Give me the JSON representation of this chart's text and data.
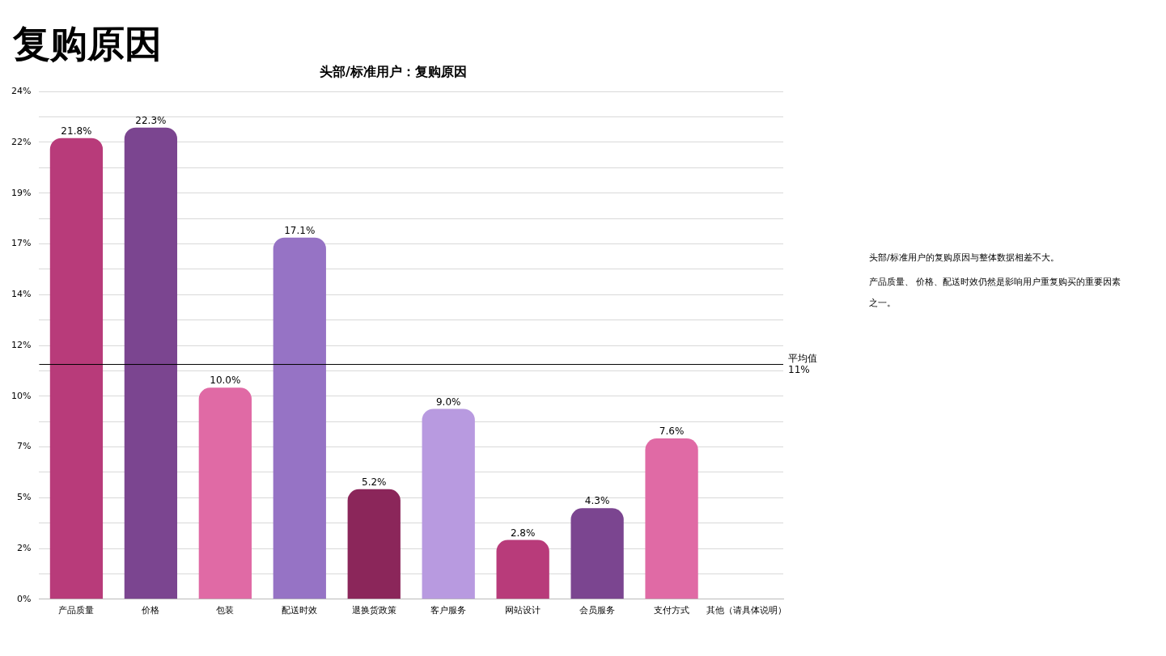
{
  "chart_data": {
    "type": "bar",
    "title": "复购原因",
    "subtitle": "头部/标准用户：复购原因",
    "categories": [
      "产品质量",
      "价格",
      "包装",
      "配送时效",
      "退换货政策",
      "客户服务",
      "网站设计",
      "会员服务",
      "支付方式",
      "其他（请具体说明）"
    ],
    "values": [
      21.8,
      22.3,
      10.0,
      17.1,
      5.2,
      9.0,
      2.8,
      4.3,
      7.6,
      null
    ],
    "value_labels": [
      "21.8%",
      "22.3%",
      "10.0%",
      "17.1%",
      "5.2%",
      "9.0%",
      "2.8%",
      "4.3%",
      "7.6%",
      null
    ],
    "colors": [
      "#b83b7a",
      "#7b4590",
      "#e06aa5",
      "#9673c5",
      "#8b265a",
      "#b89ae0",
      "#b83b7a",
      "#7b4590",
      "#e06aa5",
      "#e06aa5"
    ],
    "ylim": [
      0,
      24
    ],
    "yticks": [
      {
        "value": 0,
        "label": "0%"
      },
      {
        "value": 1.2,
        "label": null
      },
      {
        "value": 2.4,
        "label": "2%"
      },
      {
        "value": 3.6,
        "label": null
      },
      {
        "value": 4.8,
        "label": "5%"
      },
      {
        "value": 6,
        "label": null
      },
      {
        "value": 7.2,
        "label": "7%"
      },
      {
        "value": 8.4,
        "label": null
      },
      {
        "value": 9.6,
        "label": "10%"
      },
      {
        "value": 10.8,
        "label": null
      },
      {
        "value": 12,
        "label": "12%"
      },
      {
        "value": 13.2,
        "label": null
      },
      {
        "value": 14.4,
        "label": "14%"
      },
      {
        "value": 15.6,
        "label": null
      },
      {
        "value": 16.8,
        "label": "17%"
      },
      {
        "value": 18,
        "label": null
      },
      {
        "value": 19.2,
        "label": "19%"
      },
      {
        "value": 20.4,
        "label": null
      },
      {
        "value": 21.6,
        "label": "22%"
      },
      {
        "value": 22.8,
        "label": null
      },
      {
        "value": 24,
        "label": "24%"
      }
    ],
    "grid": "y",
    "ref_lines": [
      {
        "axis": "y",
        "value": 11.1,
        "label": "平均值\n11%",
        "color": "#000000"
      }
    ],
    "annotations": [
      "头部/标准用户的复购原因与整体数据相差不大。",
      "产品质量、 价格、配送时效仍然是影响用户重复购买的重要因素之一。"
    ]
  }
}
